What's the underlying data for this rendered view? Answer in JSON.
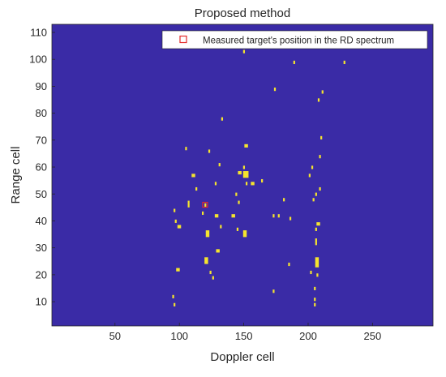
{
  "chart_data": {
    "type": "heatmap",
    "title": "Proposed method",
    "xlabel": "Doppler cell",
    "ylabel": "Range cell",
    "xlim": [
      1,
      297
    ],
    "ylim": [
      1,
      113
    ],
    "xticks": [
      50,
      100,
      150,
      200,
      250
    ],
    "yticks": [
      10,
      20,
      30,
      40,
      50,
      60,
      70,
      80,
      90,
      100,
      110
    ],
    "grid": false,
    "legend_position": "top-right",
    "colors": {
      "background": "#3a2ba6",
      "detection": "#f5e42e",
      "marker": "#e32b2b",
      "axes_bg": "#ffffff"
    },
    "legend": [
      {
        "label": "Measured target's position in the RD spectrum",
        "marker": "square"
      }
    ],
    "marker_point": {
      "x": 120,
      "y": 46
    },
    "detections": [
      [
        150,
        103,
        1,
        1
      ],
      [
        189,
        99,
        1,
        1
      ],
      [
        228,
        99,
        1,
        1
      ],
      [
        174,
        89,
        1,
        1
      ],
      [
        211,
        88,
        1,
        1
      ],
      [
        208,
        85,
        1,
        1
      ],
      [
        133,
        78,
        1,
        1
      ],
      [
        210,
        71,
        1,
        1
      ],
      [
        151,
        68,
        2,
        1
      ],
      [
        209,
        64,
        1,
        1
      ],
      [
        105,
        67,
        1,
        1
      ],
      [
        123,
        66,
        1,
        1
      ],
      [
        131,
        61,
        1,
        1
      ],
      [
        150,
        60,
        1,
        1
      ],
      [
        203,
        60,
        1,
        1
      ],
      [
        110,
        57,
        2,
        1
      ],
      [
        146,
        58,
        2,
        1
      ],
      [
        150,
        57,
        3,
        2
      ],
      [
        201,
        57,
        1,
        1
      ],
      [
        164,
        55,
        1,
        1
      ],
      [
        156,
        54,
        2,
        1
      ],
      [
        152,
        54,
        1,
        1
      ],
      [
        128,
        54,
        1,
        1
      ],
      [
        113,
        52,
        1,
        1
      ],
      [
        209,
        52,
        1,
        1
      ],
      [
        206,
        50,
        1,
        1
      ],
      [
        144,
        50,
        1,
        1
      ],
      [
        181,
        48,
        1,
        1
      ],
      [
        204,
        48,
        1,
        1
      ],
      [
        107,
        46,
        1,
        2
      ],
      [
        120,
        46,
        1,
        1
      ],
      [
        146,
        47,
        1,
        1
      ],
      [
        96,
        44,
        1,
        1
      ],
      [
        118,
        43,
        1,
        1
      ],
      [
        128,
        42,
        2,
        1
      ],
      [
        141,
        42,
        2,
        1
      ],
      [
        173,
        42,
        1,
        1
      ],
      [
        177,
        42,
        1,
        1
      ],
      [
        186,
        41,
        1,
        1
      ],
      [
        97,
        40,
        1,
        1
      ],
      [
        207,
        39,
        2,
        1
      ],
      [
        99,
        38,
        2,
        1
      ],
      [
        132,
        38,
        1,
        1
      ],
      [
        145,
        37,
        1,
        1
      ],
      [
        206,
        37,
        1,
        1
      ],
      [
        121,
        35,
        2,
        2
      ],
      [
        150,
        35,
        2,
        2
      ],
      [
        206,
        32,
        1,
        2
      ],
      [
        129,
        29,
        2,
        1
      ],
      [
        120,
        25,
        2,
        2
      ],
      [
        185,
        24,
        1,
        1
      ],
      [
        206,
        24,
        2,
        3
      ],
      [
        202,
        21,
        1,
        1
      ],
      [
        98,
        22,
        2,
        1
      ],
      [
        124,
        21,
        1,
        1
      ],
      [
        126,
        19,
        1,
        1
      ],
      [
        207,
        20,
        1,
        1
      ],
      [
        173,
        14,
        1,
        1
      ],
      [
        205,
        15,
        1,
        1
      ],
      [
        95,
        12,
        1,
        1
      ],
      [
        205,
        11,
        1,
        1
      ],
      [
        96,
        9,
        1,
        1
      ],
      [
        205,
        9,
        1,
        1
      ]
    ]
  }
}
